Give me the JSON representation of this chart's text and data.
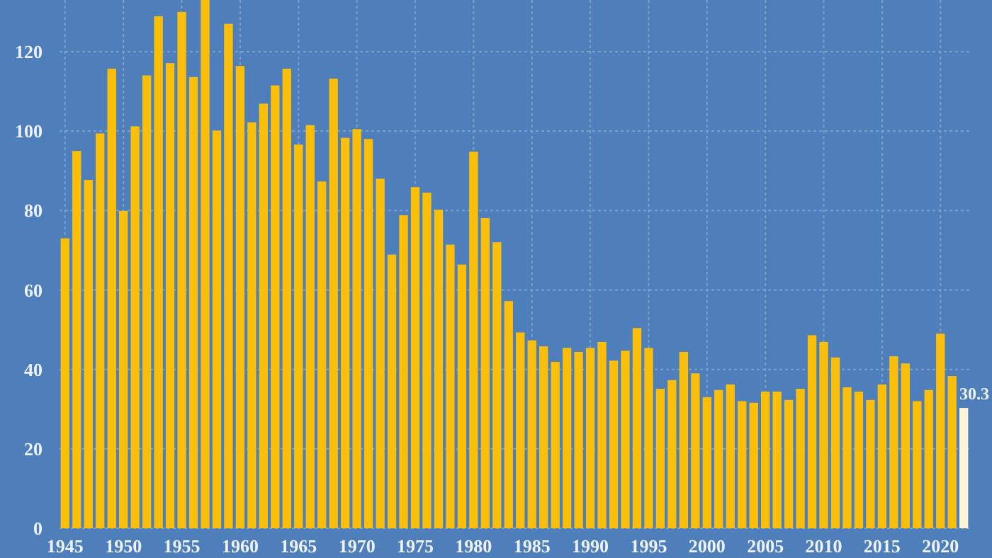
{
  "chart_data": {
    "type": "bar",
    "categories": [
      "1945",
      null,
      null,
      null,
      null,
      "1950",
      null,
      null,
      null,
      null,
      "1955",
      null,
      null,
      null,
      null,
      "1960",
      null,
      null,
      null,
      null,
      "1965",
      null,
      null,
      null,
      null,
      "1970",
      null,
      null,
      null,
      null,
      "1975",
      null,
      null,
      null,
      null,
      "1980",
      null,
      null,
      null,
      null,
      "1985",
      null,
      null,
      null,
      null,
      "1990",
      null,
      null,
      null,
      null,
      "1995",
      null,
      null,
      null,
      null,
      "2000",
      null,
      null,
      null,
      null,
      "2005",
      null,
      null,
      null,
      null,
      "2010",
      null,
      null,
      null,
      null,
      "2015",
      null,
      null,
      null,
      null,
      "2020",
      null,
      null
    ],
    "values": [
      73,
      95,
      87.7,
      99.4,
      115.7,
      79.9,
      101.2,
      114,
      128.9,
      117.1,
      130,
      113.6,
      133,
      100.1,
      127,
      116.4,
      102.2,
      106.9,
      111.5,
      115.7,
      96.6,
      101.5,
      87.3,
      113.2,
      98.3,
      100.5,
      98,
      88,
      68.9,
      78.8,
      85.9,
      84.5,
      80.2,
      71.4,
      66.4,
      94.8,
      78.1,
      72,
      57.2,
      49.3,
      47.3,
      45.8,
      41.9,
      45.4,
      44.4,
      45.4,
      46.9,
      42.2,
      44.7,
      50.4,
      45.4,
      35.1,
      37.3,
      44.4,
      39,
      33,
      34.8,
      36.2,
      32,
      31.6,
      34.4,
      34.4,
      32.3,
      35.1,
      48.6,
      46.9,
      43,
      35.5,
      34.4,
      32.3,
      36.2,
      43.3,
      41.5,
      32,
      34.8,
      49,
      38.3,
      30.3
    ],
    "colors": [
      "#fbbf0a",
      "#fbbf0a",
      "#fbbf0a",
      "#fbbf0a",
      "#fbbf0a",
      "#fbbf0a",
      "#fbbf0a",
      "#fbbf0a",
      "#fbbf0a",
      "#fbbf0a",
      "#fbbf0a",
      "#fbbf0a",
      "#fbbf0a",
      "#fbbf0a",
      "#fbbf0a",
      "#fbbf0a",
      "#fbbf0a",
      "#fbbf0a",
      "#fbbf0a",
      "#fbbf0a",
      "#fbbf0a",
      "#fbbf0a",
      "#fbbf0a",
      "#fbbf0a",
      "#fbbf0a",
      "#fbbf0a",
      "#fbbf0a",
      "#fbbf0a",
      "#fbbf0a",
      "#fbbf0a",
      "#fbbf0a",
      "#fbbf0a",
      "#fbbf0a",
      "#fbbf0a",
      "#fbbf0a",
      "#fbbf0a",
      "#fbbf0a",
      "#fbbf0a",
      "#fbbf0a",
      "#fbbf0a",
      "#fbbf0a",
      "#fbbf0a",
      "#fbbf0a",
      "#fbbf0a",
      "#fbbf0a",
      "#fbbf0a",
      "#fbbf0a",
      "#fbbf0a",
      "#fbbf0a",
      "#fbbf0a",
      "#fbbf0a",
      "#fbbf0a",
      "#fbbf0a",
      "#fbbf0a",
      "#fbbf0a",
      "#fbbf0a",
      "#fbbf0a",
      "#fbbf0a",
      "#fbbf0a",
      "#fbbf0a",
      "#fbbf0a",
      "#fbbf0a",
      "#fbbf0a",
      "#fbbf0a",
      "#fbbf0a",
      "#fbbf0a",
      "#fbbf0a",
      "#fbbf0a",
      "#fbbf0a",
      "#fbbf0a",
      "#fbbf0a",
      "#fbbf0a",
      "#fbbf0a",
      "#fbbf0a",
      "#fbbf0a",
      "#fbbf0a",
      "#fbbf0a",
      "#fdf3d6"
    ],
    "value_labels": [
      null,
      null,
      null,
      null,
      null,
      null,
      null,
      null,
      null,
      null,
      null,
      null,
      null,
      null,
      null,
      null,
      null,
      null,
      null,
      null,
      null,
      null,
      null,
      null,
      null,
      null,
      null,
      null,
      null,
      null,
      null,
      null,
      null,
      null,
      null,
      null,
      null,
      null,
      null,
      null,
      null,
      null,
      null,
      null,
      null,
      null,
      null,
      null,
      null,
      null,
      null,
      null,
      null,
      null,
      null,
      null,
      null,
      null,
      null,
      null,
      null,
      null,
      null,
      null,
      null,
      null,
      null,
      null,
      null,
      null,
      null,
      null,
      null,
      null,
      null,
      null,
      null,
      "30.3"
    ],
    "ylim": [
      0,
      133
    ],
    "yticks": [
      0,
      20,
      40,
      60,
      80,
      100,
      120
    ],
    "grid": true
  }
}
